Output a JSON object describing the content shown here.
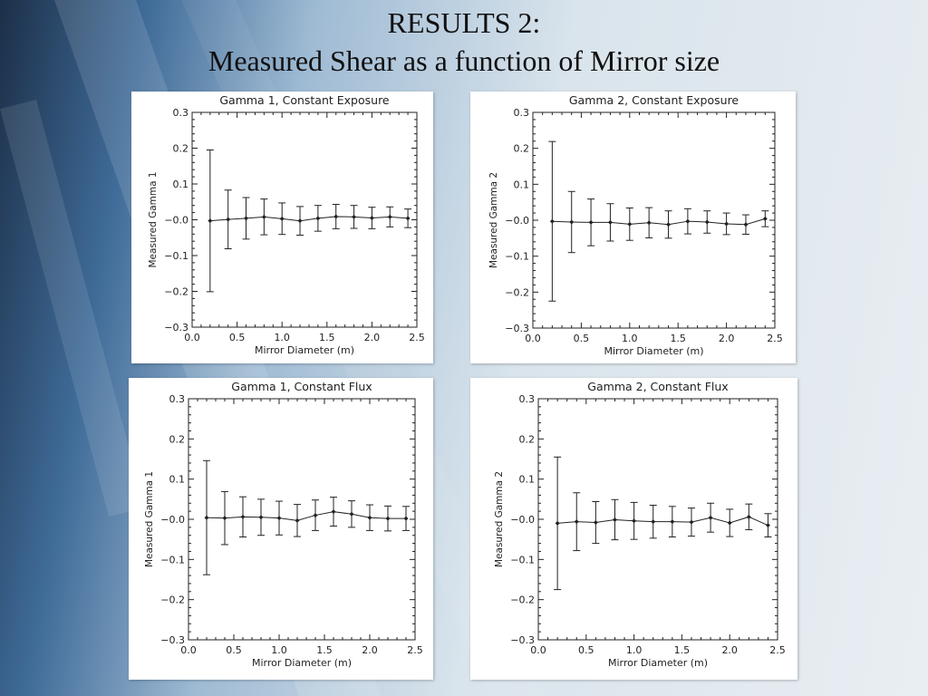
{
  "slide": {
    "title_line1": "RESULTS 2:",
    "title_line2": "Measured Shear as a function of Mirror size"
  },
  "colors": {
    "ink": "#222222",
    "panel": "#ffffff"
  },
  "chart_data": [
    {
      "type": "scatter",
      "title": "Gamma 1, Constant Exposure",
      "xlabel": "Mirror Diameter (m)",
      "ylabel": "Measured Gamma 1",
      "xlim": [
        0,
        2.5
      ],
      "ylim": [
        -0.3,
        0.3
      ],
      "xticks": [
        "0.0",
        "0.5",
        "1.0",
        "1.5",
        "2.0",
        "2.5"
      ],
      "yticks": [
        "−0.3",
        "−0.2",
        "−0.1",
        "−0.0",
        "0.1",
        "0.2",
        "0.3"
      ],
      "series": [
        {
          "x": [
            0.2,
            0.4,
            0.6,
            0.8,
            1.0,
            1.2,
            1.4,
            1.6,
            1.8,
            2.0,
            2.2,
            2.4
          ],
          "y": [
            -0.003,
            0.001,
            0.004,
            0.008,
            0.003,
            -0.003,
            0.004,
            0.009,
            0.008,
            0.005,
            0.008,
            0.004
          ],
          "err": [
            0.198,
            0.082,
            0.058,
            0.05,
            0.044,
            0.04,
            0.036,
            0.034,
            0.032,
            0.03,
            0.028,
            0.026
          ]
        }
      ]
    },
    {
      "type": "scatter",
      "title": "Gamma 2, Constant Exposure",
      "xlabel": "Mirror Diameter (m)",
      "ylabel": "Measured Gamma 2",
      "xlim": [
        0,
        2.5
      ],
      "ylim": [
        -0.3,
        0.3
      ],
      "xticks": [
        "0.0",
        "0.5",
        "1.0",
        "1.5",
        "2.0",
        "2.5"
      ],
      "yticks": [
        "−0.3",
        "−0.2",
        "−0.1",
        "−0.0",
        "0.1",
        "0.2",
        "0.3"
      ],
      "series": [
        {
          "x": [
            0.2,
            0.4,
            0.6,
            0.8,
            1.0,
            1.2,
            1.4,
            1.6,
            1.8,
            2.0,
            2.2,
            2.4
          ],
          "y": [
            -0.003,
            -0.005,
            -0.006,
            -0.006,
            -0.011,
            -0.007,
            -0.012,
            -0.003,
            -0.005,
            -0.01,
            -0.012,
            0.004
          ],
          "err": [
            0.222,
            0.085,
            0.065,
            0.052,
            0.045,
            0.042,
            0.038,
            0.035,
            0.031,
            0.03,
            0.027,
            0.022
          ]
        }
      ]
    },
    {
      "type": "scatter",
      "title": "Gamma 1, Constant Flux",
      "xlabel": "Mirror Diameter (m)",
      "ylabel": "Measured Gamma 1",
      "xlim": [
        0,
        2.5
      ],
      "ylim": [
        -0.3,
        0.3
      ],
      "xticks": [
        "0.0",
        "0.5",
        "1.0",
        "1.5",
        "2.0",
        "2.5"
      ],
      "yticks": [
        "−0.3",
        "−0.2",
        "−0.1",
        "−0.0",
        "0.1",
        "0.2",
        "0.3"
      ],
      "series": [
        {
          "x": [
            0.2,
            0.4,
            0.6,
            0.8,
            1.0,
            1.2,
            1.4,
            1.6,
            1.8,
            2.0,
            2.2,
            2.4
          ],
          "y": [
            0.004,
            0.003,
            0.006,
            0.005,
            0.003,
            -0.003,
            0.01,
            0.019,
            0.013,
            0.004,
            0.002,
            0.002
          ],
          "err": [
            0.142,
            0.066,
            0.05,
            0.045,
            0.042,
            0.04,
            0.038,
            0.036,
            0.033,
            0.032,
            0.031,
            0.03
          ]
        }
      ]
    },
    {
      "type": "scatter",
      "title": "Gamma 2, Constant Flux",
      "xlabel": "Mirror Diameter (m)",
      "ylabel": "Measured Gamma 2",
      "xlim": [
        0,
        2.5
      ],
      "ylim": [
        -0.3,
        0.3
      ],
      "xticks": [
        "0.0",
        "0.5",
        "1.0",
        "1.5",
        "2.0",
        "2.5"
      ],
      "yticks": [
        "−0.3",
        "−0.2",
        "−0.1",
        "−0.0",
        "0.1",
        "0.2",
        "0.3"
      ],
      "series": [
        {
          "x": [
            0.2,
            0.4,
            0.6,
            0.8,
            1.0,
            1.2,
            1.4,
            1.6,
            1.8,
            2.0,
            2.2,
            2.4
          ],
          "y": [
            -0.01,
            -0.006,
            -0.008,
            -0.001,
            -0.004,
            -0.006,
            -0.006,
            -0.007,
            0.004,
            -0.009,
            0.006,
            -0.015
          ],
          "err": [
            0.165,
            0.072,
            0.052,
            0.05,
            0.046,
            0.041,
            0.038,
            0.035,
            0.036,
            0.034,
            0.032,
            0.029
          ]
        }
      ]
    }
  ]
}
